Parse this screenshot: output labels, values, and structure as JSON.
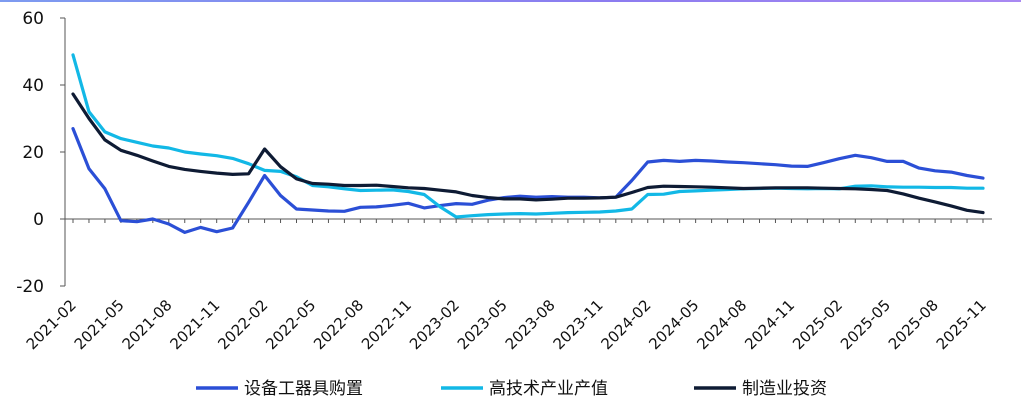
{
  "chart_data": {
    "type": "line",
    "title": "",
    "xlabel": "",
    "ylabel": "",
    "ylim": [
      -20,
      60
    ],
    "yticks": [
      "60",
      "40",
      "20",
      "0",
      "-20"
    ],
    "ytick_values": [
      60,
      40,
      20,
      0,
      -20
    ],
    "grid": false,
    "legend_position": "bottom",
    "xtick_labels": [
      "2021-02",
      "2021-05",
      "2021-08",
      "2021-11",
      "2022-02",
      "2022-05",
      "2022-08",
      "2022-11",
      "2023-02",
      "2023-05",
      "2023-08",
      "2023-11",
      "2024-02",
      "2024-05",
      "2024-08",
      "2024-11",
      "2025-02",
      "2025-05",
      "2025-08",
      "2025-11"
    ],
    "x": [
      "2021-02",
      "2021-03",
      "2021-04",
      "2021-05",
      "2021-06",
      "2021-07",
      "2021-08",
      "2021-09",
      "2021-10",
      "2021-11",
      "2021-12",
      "2022-01",
      "2022-02",
      "2022-03",
      "2022-04",
      "2022-05",
      "2022-06",
      "2022-07",
      "2022-08",
      "2022-09",
      "2022-10",
      "2022-11",
      "2022-12",
      "2023-01",
      "2023-02",
      "2023-03",
      "2023-04",
      "2023-05",
      "2023-06",
      "2023-07",
      "2023-08",
      "2023-09",
      "2023-10",
      "2023-11",
      "2023-12",
      "2024-01",
      "2024-02",
      "2024-03",
      "2024-04",
      "2024-05",
      "2024-06",
      "2024-07",
      "2024-08",
      "2024-09",
      "2024-10",
      "2024-11",
      "2024-12",
      "2025-01",
      "2025-02",
      "2025-03",
      "2025-04",
      "2025-05",
      "2025-06",
      "2025-07",
      "2025-08",
      "2025-09",
      "2025-10",
      "2025-11"
    ],
    "series": [
      {
        "name": "设备工器具购置",
        "color": "#2b4fd6",
        "values": [
          27,
          15,
          9,
          -0.5,
          -0.8,
          0,
          -1.5,
          -4,
          -2.5,
          -3.8,
          -2.7,
          5,
          13,
          7,
          3,
          2.7,
          2.4,
          2.3,
          3.5,
          3.6,
          4.1,
          4.7,
          3.3,
          4.0,
          4.6,
          4.4,
          5.6,
          6.4,
          6.8,
          6.5,
          6.7,
          6.5,
          6.5,
          6.3,
          6.5,
          11.5,
          17,
          17.5,
          17.2,
          17.5,
          17.3,
          17.0,
          16.8,
          16.5,
          16.2,
          15.8,
          15.7,
          16.8,
          18,
          19,
          18.3,
          17.2,
          17.2,
          15.2,
          14.4,
          14.0,
          13.0,
          12.2
        ]
      },
      {
        "name": "高技术产业产值",
        "color": "#12b8e6",
        "values": [
          49,
          32,
          26,
          24,
          22.9,
          21.8,
          21.2,
          20.0,
          19.4,
          18.9,
          18.1,
          16.5,
          14.5,
          14.2,
          12.6,
          10.0,
          9.6,
          9.0,
          8.5,
          8.6,
          8.7,
          8.2,
          7.3,
          3.6,
          0.6,
          1.0,
          1.3,
          1.5,
          1.6,
          1.5,
          1.7,
          1.9,
          2.0,
          2.1,
          2.4,
          3.0,
          7.3,
          7.4,
          8.2,
          8.4,
          8.6,
          8.8,
          9.0,
          9.1,
          9.2,
          9.1,
          9.0,
          9.1,
          9.0,
          9.8,
          9.9,
          9.6,
          9.5,
          9.5,
          9.4,
          9.4,
          9.2,
          9.2
        ]
      },
      {
        "name": "制造业投资",
        "color": "#0e1b34",
        "values": [
          37.3,
          30,
          23.6,
          20.5,
          19,
          17.3,
          15.7,
          14.8,
          14.2,
          13.7,
          13.3,
          13.5,
          20.9,
          15.6,
          12.0,
          10.6,
          10.4,
          10.0,
          10.0,
          10.1,
          9.7,
          9.3,
          9.1,
          8.6,
          8.1,
          7.0,
          6.4,
          6.0,
          6.0,
          5.7,
          5.9,
          6.2,
          6.2,
          6.3,
          6.5,
          7.9,
          9.4,
          9.8,
          9.7,
          9.6,
          9.5,
          9.3,
          9.1,
          9.2,
          9.3,
          9.3,
          9.3,
          9.2,
          9.1,
          9.0,
          8.8,
          8.5,
          7.5,
          6.2,
          5.1,
          3.9,
          2.6,
          1.9
        ]
      }
    ]
  }
}
